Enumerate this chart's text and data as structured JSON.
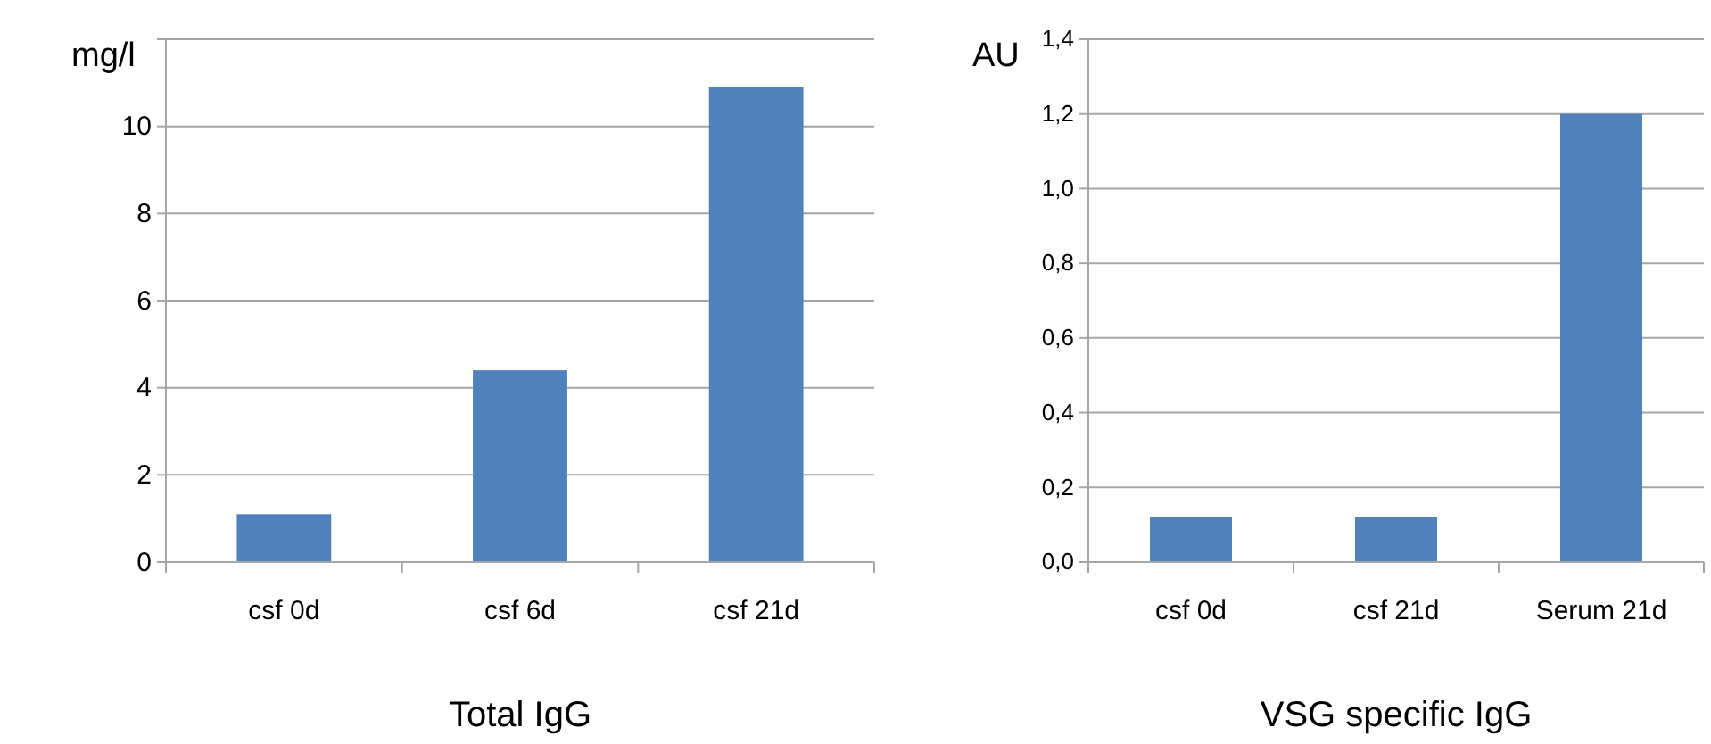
{
  "chart_data": [
    {
      "type": "bar",
      "title": "Total IgG",
      "ylabel": "mg/l",
      "categories": [
        "csf 0d",
        "csf 6d",
        "csf 21d"
      ],
      "values": [
        1.1,
        4.4,
        10.9
      ],
      "color": "#4f81bd",
      "ylim": [
        0,
        12
      ],
      "yticks": [
        0,
        2,
        4,
        6,
        8,
        10,
        {
          "value": 12,
          "label": null
        }
      ],
      "grid": "y"
    },
    {
      "type": "bar",
      "title": "VSG specific IgG",
      "ylabel": "AU",
      "categories": [
        "csf 0d",
        "csf 21d",
        "Serum 21d"
      ],
      "values": [
        0.12,
        0.12,
        1.2
      ],
      "color": "#4f81bd",
      "ylim": [
        0,
        1.4
      ],
      "yticks": [
        {
          "value": 0,
          "label": "0,0"
        },
        {
          "value": 0.2,
          "label": "0,2"
        },
        {
          "value": 0.4,
          "label": "0,4"
        },
        {
          "value": 0.6,
          "label": "0,6"
        },
        {
          "value": 0.8,
          "label": "0,8"
        },
        {
          "value": 1.0,
          "label": "1,0"
        },
        {
          "value": 1.2,
          "label": "1,2"
        },
        {
          "value": 1.4,
          "label": "1,4"
        }
      ],
      "grid": "y"
    }
  ]
}
